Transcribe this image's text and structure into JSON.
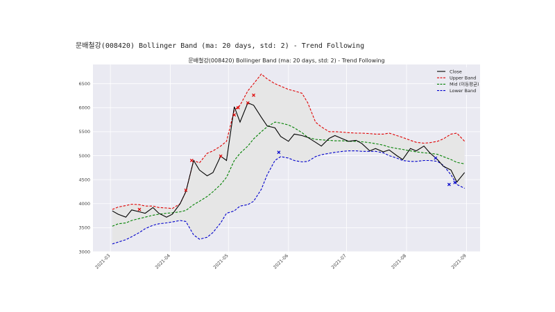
{
  "figure_title": "문배철강(008420) Bollinger Band (ma: 20 days, std: 2) - Trend Following",
  "colors": {
    "close": "#000000",
    "upper": "#e00000",
    "mid": "#008000",
    "lower": "#0000cc",
    "fill": "#e6e6e6",
    "bg": "#eaeaf2",
    "grid": "#ffffff"
  },
  "chart_data": {
    "type": "line",
    "title": "문배철강(008420) Bollinger Band (ma: 20 days, std: 2) - Trend Following",
    "xlabel": "",
    "ylabel": "",
    "xlim": [
      "2021-02-20",
      "2021-09-08"
    ],
    "ylim": [
      3000,
      6900
    ],
    "grid": true,
    "legend_position": "top-right",
    "x_ticks": [
      "2021-03",
      "2021-04",
      "2021-05",
      "2021-06",
      "2021-07",
      "2021-08",
      "2021-09"
    ],
    "y_ticks": [
      3000,
      3500,
      4000,
      4500,
      5000,
      5500,
      6000,
      6500
    ],
    "x": [
      "2021-03-02",
      "2021-03-05",
      "2021-03-09",
      "2021-03-12",
      "2021-03-16",
      "2021-03-19",
      "2021-03-23",
      "2021-03-26",
      "2021-03-30",
      "2021-04-02",
      "2021-04-06",
      "2021-04-09",
      "2021-04-13",
      "2021-04-16",
      "2021-04-20",
      "2021-04-23",
      "2021-04-27",
      "2021-04-30",
      "2021-05-04",
      "2021-05-07",
      "2021-05-11",
      "2021-05-14",
      "2021-05-18",
      "2021-05-21",
      "2021-05-25",
      "2021-05-28",
      "2021-06-01",
      "2021-06-04",
      "2021-06-08",
      "2021-06-11",
      "2021-06-15",
      "2021-06-18",
      "2021-06-22",
      "2021-06-25",
      "2021-06-29",
      "2021-07-02",
      "2021-07-06",
      "2021-07-09",
      "2021-07-13",
      "2021-07-16",
      "2021-07-20",
      "2021-07-23",
      "2021-07-27",
      "2021-07-30",
      "2021-08-03",
      "2021-08-06",
      "2021-08-10",
      "2021-08-13",
      "2021-08-17",
      "2021-08-20",
      "2021-08-24",
      "2021-08-27",
      "2021-08-31"
    ],
    "series": [
      {
        "name": "Close",
        "values": [
          3850,
          3780,
          3720,
          3870,
          3830,
          3800,
          3920,
          3800,
          3720,
          3780,
          4000,
          4250,
          4900,
          4700,
          4580,
          4650,
          4990,
          4900,
          6020,
          5700,
          6100,
          6050,
          5800,
          5620,
          5580,
          5400,
          5300,
          5450,
          5420,
          5380,
          5280,
          5200,
          5360,
          5420,
          5350,
          5300,
          5320,
          5250,
          5100,
          5150,
          5080,
          5120,
          5000,
          4920,
          5150,
          5100,
          5200,
          5060,
          4920,
          4780,
          4700,
          4450,
          4650
        ]
      },
      {
        "name": "Upper Band",
        "values": [
          3880,
          3930,
          3960,
          3990,
          3980,
          3950,
          3950,
          3920,
          3910,
          3900,
          4000,
          4250,
          4900,
          4850,
          5050,
          5100,
          5200,
          5300,
          5950,
          6050,
          6350,
          6500,
          6700,
          6600,
          6500,
          6450,
          6380,
          6350,
          6300,
          6100,
          5700,
          5600,
          5500,
          5500,
          5490,
          5480,
          5470,
          5470,
          5460,
          5450,
          5450,
          5470,
          5420,
          5380,
          5320,
          5280,
          5260,
          5270,
          5300,
          5350,
          5450,
          5470,
          5300
        ]
      },
      {
        "name": "Mid (이동평균)",
        "values": [
          3530,
          3580,
          3600,
          3650,
          3690,
          3720,
          3760,
          3780,
          3800,
          3810,
          3830,
          3860,
          3980,
          4050,
          4150,
          4250,
          4400,
          4550,
          4900,
          5050,
          5200,
          5350,
          5500,
          5600,
          5700,
          5680,
          5640,
          5580,
          5480,
          5380,
          5340,
          5330,
          5320,
          5310,
          5310,
          5300,
          5300,
          5290,
          5270,
          5250,
          5220,
          5180,
          5150,
          5130,
          5100,
          5080,
          5060,
          5050,
          5030,
          4980,
          4920,
          4860,
          4830
        ]
      },
      {
        "name": "Lower Band",
        "values": [
          3160,
          3200,
          3250,
          3310,
          3400,
          3480,
          3550,
          3580,
          3600,
          3620,
          3650,
          3630,
          3350,
          3260,
          3300,
          3400,
          3600,
          3800,
          3850,
          3950,
          3980,
          4050,
          4300,
          4600,
          4900,
          4980,
          4950,
          4900,
          4870,
          4880,
          4980,
          5020,
          5050,
          5070,
          5090,
          5100,
          5100,
          5090,
          5090,
          5090,
          5060,
          5000,
          4950,
          4900,
          4880,
          4880,
          4900,
          4900,
          4880,
          4800,
          4600,
          4400,
          4320
        ]
      }
    ],
    "markers": [
      {
        "label": "sell",
        "color": "#e00000",
        "x": "2021-03-16",
        "y": 3880
      },
      {
        "label": "sell",
        "color": "#e00000",
        "x": "2021-04-09",
        "y": 4280
      },
      {
        "label": "sell",
        "color": "#e00000",
        "x": "2021-04-12",
        "y": 4900
      },
      {
        "label": "sell",
        "color": "#e00000",
        "x": "2021-04-27",
        "y": 4990
      },
      {
        "label": "sell",
        "color": "#e00000",
        "x": "2021-05-04",
        "y": 5850
      },
      {
        "label": "sell",
        "color": "#e00000",
        "x": "2021-05-06",
        "y": 6000
      },
      {
        "label": "sell",
        "color": "#e00000",
        "x": "2021-05-11",
        "y": 6100
      },
      {
        "label": "sell",
        "color": "#e00000",
        "x": "2021-05-14",
        "y": 6260
      },
      {
        "label": "buy",
        "color": "#0000cc",
        "x": "2021-05-27",
        "y": 5070
      },
      {
        "label": "buy",
        "color": "#0000cc",
        "x": "2021-08-16",
        "y": 4950
      },
      {
        "label": "buy",
        "color": "#0000cc",
        "x": "2021-08-23",
        "y": 4400
      },
      {
        "label": "buy",
        "color": "#0000cc",
        "x": "2021-08-26",
        "y": 4440
      }
    ]
  }
}
